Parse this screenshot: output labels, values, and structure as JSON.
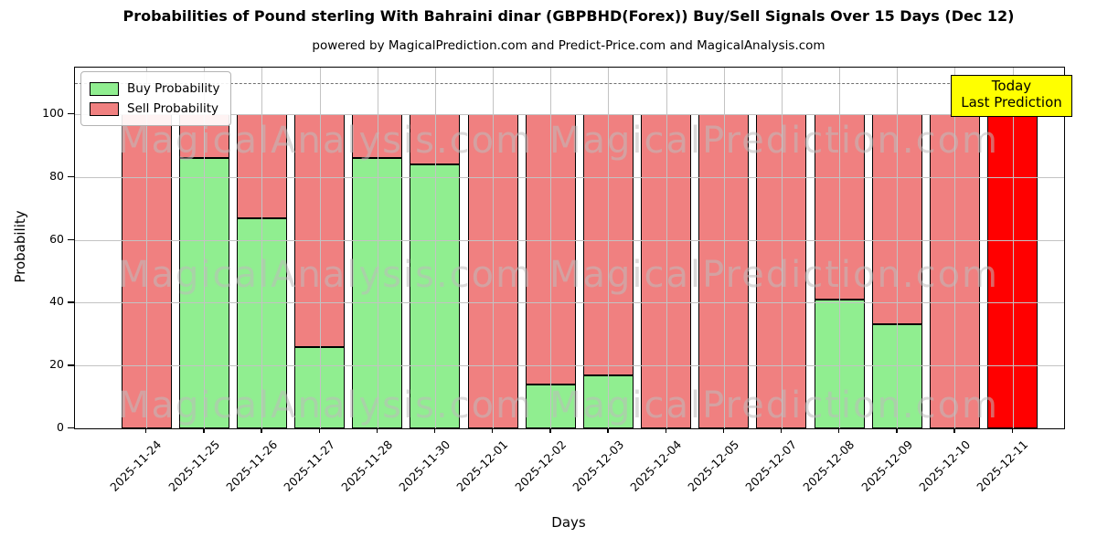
{
  "title": "Probabilities of Pound sterling With Bahraini dinar (GBPBHD(Forex)) Buy/Sell Signals Over 15 Days (Dec 12)",
  "subtitle": "powered by MagicalPrediction.com and Predict-Price.com and MagicalAnalysis.com",
  "legend": {
    "buy_label": "Buy Probability",
    "sell_label": "Sell Probability"
  },
  "annotation_box": {
    "line1": "Today",
    "line2": "Last Prediction",
    "bg_color": "#FFFF00"
  },
  "axes": {
    "xlabel": "Days",
    "ylabel": "Probability",
    "yticks": [
      0,
      20,
      40,
      60,
      80,
      100
    ],
    "ylim": [
      0,
      115
    ],
    "dashed_line_y": 110
  },
  "colors": {
    "buy": "#90EE90",
    "sell": "#F08080",
    "today_bar": "#FF0000",
    "grid": "#c3c3c3",
    "dashed_line": "#707070",
    "bar_edge": "#000000",
    "watermark": "rgba(190,188,188,0.55)"
  },
  "watermarks": {
    "left_text": "MagicalAnalysis.com",
    "right_text": "MagicalPrediction.com"
  },
  "chart_data": {
    "type": "bar",
    "stacked": true,
    "title": "Probabilities of Pound sterling With Bahraini dinar (GBPBHD(Forex)) Buy/Sell Signals Over 15 Days (Dec 12)",
    "xlabel": "Days",
    "ylabel": "Probability",
    "ylim": [
      0,
      115
    ],
    "grid": true,
    "legend_position": "upper left",
    "dashed_line_y": 110,
    "categories": [
      "2025-11-24",
      "2025-11-25",
      "2025-11-26",
      "2025-11-27",
      "2025-11-28",
      "2025-11-30",
      "2025-12-01",
      "2025-12-02",
      "2025-12-03",
      "2025-12-04",
      "2025-12-05",
      "2025-12-07",
      "2025-12-08",
      "2025-12-09",
      "2025-12-10",
      "2025-12-11"
    ],
    "series": [
      {
        "name": "Buy Probability",
        "color": "#90EE90",
        "values": [
          0,
          86,
          67,
          26,
          86,
          84,
          0,
          14,
          17,
          0,
          0,
          0,
          41,
          33,
          0,
          0
        ]
      },
      {
        "name": "Sell Probability",
        "color": "#F08080",
        "values": [
          100,
          14,
          33,
          74,
          14,
          16,
          100,
          86,
          83,
          100,
          100,
          100,
          59,
          67,
          100,
          100
        ]
      }
    ],
    "today_index": 15,
    "today_bar": {
      "category": "2025-12-11",
      "value": 100,
      "color": "#FF0000",
      "label": "Today / Last Prediction"
    }
  }
}
